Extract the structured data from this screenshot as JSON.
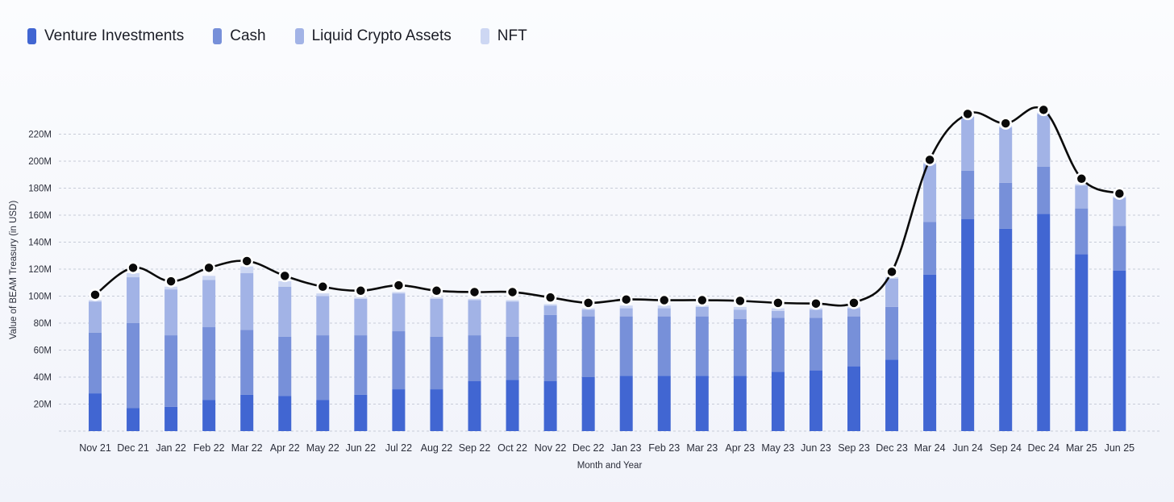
{
  "colors": {
    "venture": "#4166d2",
    "cash": "#7790d9",
    "liquid": "#a2b3e6",
    "nft": "#cdd7f3",
    "line": "#0a0a0a",
    "grid": "#c7ccd8"
  },
  "chart_data": {
    "type": "bar",
    "xlabel": "Month and Year",
    "ylabel": "Value of BEAM Treasury (in USD)",
    "ylim": [
      0,
      220000000
    ],
    "yticks": [
      "20M",
      "40M",
      "60M",
      "80M",
      "100M",
      "120M",
      "140M",
      "160M",
      "180M",
      "200M",
      "220M"
    ],
    "grid": true,
    "legend_position": "top-left",
    "stacked": true,
    "categories": [
      "Nov 21",
      "Dec 21",
      "Jan 22",
      "Feb 22",
      "Mar 22",
      "Apr 22",
      "May 22",
      "Jun 22",
      "Jul 22",
      "Aug 22",
      "Sep 22",
      "Oct 22",
      "Nov 22",
      "Dec 22",
      "Jan 23",
      "Feb 23",
      "Mar 23",
      "Apr 23",
      "May 23",
      "Jun 23",
      "Sep 23",
      "Dec 23",
      "Mar 24",
      "Jun 24",
      "Sep 24",
      "Dec 24",
      "Mar 25",
      "Jun 25"
    ],
    "series": [
      {
        "name": "Venture Investments",
        "color_key": "venture",
        "values": [
          28,
          17,
          18,
          23,
          27,
          26,
          23,
          27,
          31,
          31,
          37,
          38,
          37,
          40,
          41,
          41,
          41,
          41,
          44,
          45,
          48,
          53,
          116,
          157,
          150,
          161,
          131,
          119
        ]
      },
      {
        "name": "Cash",
        "color_key": "cash",
        "values": [
          45,
          63,
          53,
          54,
          48,
          44,
          48,
          44,
          43,
          39,
          34,
          32,
          49,
          45,
          44,
          44,
          44,
          42,
          40,
          39,
          37,
          39,
          39,
          36,
          34,
          35,
          34,
          33
        ]
      },
      {
        "name": "Liquid Crypto Assets",
        "color_key": "liquid",
        "values": [
          23,
          34,
          34,
          35,
          42,
          37,
          29,
          27,
          28,
          28,
          26,
          26,
          7,
          5,
          6,
          6,
          7,
          7,
          5,
          6,
          6,
          21,
          43,
          40,
          41,
          39,
          17,
          21
        ]
      },
      {
        "name": "NFT",
        "color_key": "nft",
        "values": [
          1,
          3,
          2,
          3,
          5,
          4,
          2,
          1,
          1,
          1,
          1,
          1,
          1,
          1,
          2,
          2,
          1,
          2,
          2,
          1,
          1,
          1,
          1,
          1,
          1,
          1,
          1,
          1
        ]
      }
    ],
    "total_line": [
      101,
      121,
      111,
      121,
      126,
      115,
      107,
      104,
      108,
      104,
      103,
      103,
      99,
      95,
      97.5,
      97,
      97,
      96.5,
      95,
      94.5,
      95,
      118,
      201,
      235,
      228,
      238,
      187,
      176
    ],
    "units": "millions USD"
  },
  "legend": [
    {
      "label": "Venture Investments",
      "color_key": "venture"
    },
    {
      "label": "Cash",
      "color_key": "cash"
    },
    {
      "label": "Liquid Crypto Assets",
      "color_key": "liquid"
    },
    {
      "label": "NFT",
      "color_key": "nft"
    }
  ]
}
